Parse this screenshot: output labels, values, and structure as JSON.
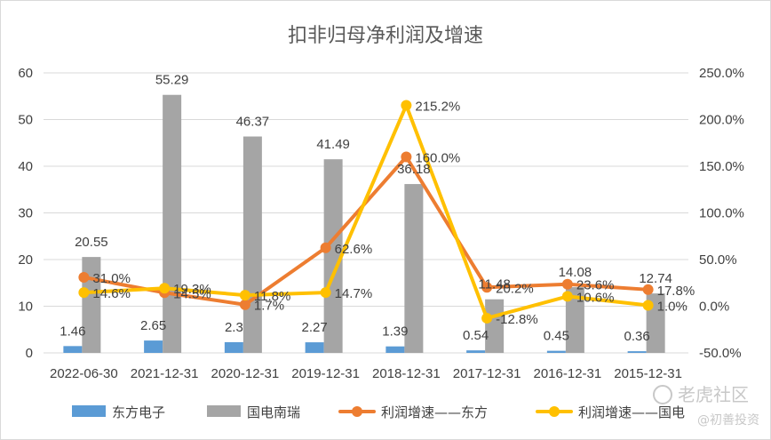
{
  "chart_data": {
    "type": "bar+line",
    "title": "扣非归母净利润及增速",
    "categories": [
      "2022-06-30",
      "2021-12-31",
      "2020-12-31",
      "2019-12-31",
      "2018-12-31",
      "2017-12-31",
      "2016-12-31",
      "2015-12-31"
    ],
    "left_axis": {
      "ylim": [
        0,
        60
      ],
      "ticks": [
        "0",
        "10",
        "20",
        "30",
        "40",
        "50",
        "60"
      ]
    },
    "right_axis": {
      "ylim": [
        -50,
        250
      ],
      "ticks": [
        "-50.0%",
        "0.0%",
        "50.0%",
        "100.0%",
        "150.0%",
        "200.0%",
        "250.0%"
      ]
    },
    "bar_series": [
      {
        "name": "东方电子",
        "color": "#5b9bd5",
        "values": [
          1.46,
          2.65,
          2.3,
          2.27,
          1.39,
          0.54,
          0.45,
          0.36
        ],
        "labels": [
          "1.46",
          "2.65",
          "2.3",
          "2.27",
          "1.39",
          "0.54",
          "0.45",
          "0.36"
        ]
      },
      {
        "name": "国电南瑞",
        "color": "#a5a5a5",
        "values": [
          20.55,
          55.29,
          46.37,
          41.49,
          36.18,
          11.48,
          14.08,
          12.74
        ],
        "labels": [
          "20.55",
          "55.29",
          "46.37",
          "41.49",
          "36.18",
          "11.48",
          "14.08",
          "12.74"
        ]
      }
    ],
    "line_series": [
      {
        "name": "利润增速——东方",
        "color": "#ed7d31",
        "values": [
          31.0,
          14.5,
          1.7,
          62.6,
          160.0,
          20.2,
          23.6,
          17.8
        ],
        "labels": [
          "31.0%",
          "14.5%",
          "1.7%",
          "62.6%",
          "160.0%",
          "20.2%",
          "23.6%",
          "17.8%"
        ]
      },
      {
        "name": "利润增速——国电",
        "color": "#ffc000",
        "values": [
          14.6,
          19.3,
          11.8,
          14.7,
          215.2,
          -12.8,
          10.6,
          1.0
        ],
        "labels": [
          "14.6%",
          "19.3%",
          "11.8%",
          "14.7%",
          "215.2%",
          "-12.8%",
          "10.6%",
          "1.0%"
        ]
      }
    ],
    "grid": true,
    "legend_position": "bottom"
  },
  "watermark": {
    "brand": "老虎社区",
    "sub": "@初善投资"
  }
}
